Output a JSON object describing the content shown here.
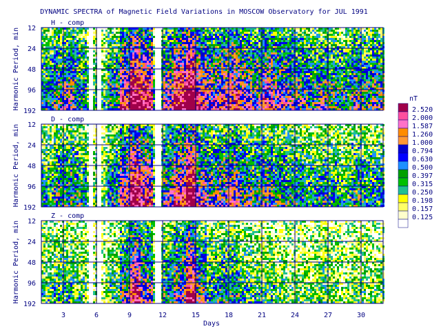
{
  "chart_data": {
    "type": "heatmap",
    "title": "DYNAMIC SPECTRA of Magnetic Field Variations in MOSCOW Observatory for JUL 1991",
    "xlabel": "Days",
    "ylabel": "Harmonic Period, min",
    "xlim": [
      1,
      32
    ],
    "x_ticks": [
      "3",
      "6",
      "9",
      "12",
      "15",
      "18",
      "21",
      "24",
      "27",
      "30"
    ],
    "y_ticks": [
      "12",
      "24",
      "48",
      "96",
      "192"
    ],
    "y_scale": "log2",
    "grid": true,
    "panels": [
      {
        "name": "H - comp",
        "intensity_by_day": [
          0.45,
          0.55,
          0.6,
          0.5,
          0.3,
          0.3,
          0.5,
          0.75,
          0.95,
          0.85,
          0.4,
          0.65,
          0.85,
          1.0,
          0.75,
          0.65,
          0.7,
          0.75,
          0.65,
          0.6,
          0.7,
          0.65,
          0.6,
          0.55,
          0.5,
          0.55,
          0.5,
          0.45,
          0.55,
          0.5,
          0.55
        ]
      },
      {
        "name": "D - comp",
        "intensity_by_day": [
          0.4,
          0.5,
          0.5,
          0.45,
          0.25,
          0.25,
          0.45,
          0.7,
          0.9,
          0.75,
          0.35,
          0.6,
          0.75,
          0.95,
          0.65,
          0.55,
          0.6,
          0.65,
          0.55,
          0.5,
          0.55,
          0.5,
          0.45,
          0.45,
          0.4,
          0.45,
          0.4,
          0.35,
          0.45,
          0.4,
          0.4
        ]
      },
      {
        "name": "Z - comp",
        "intensity_by_day": [
          0.3,
          0.35,
          0.35,
          0.3,
          0.2,
          0.2,
          0.3,
          0.55,
          0.8,
          0.6,
          0.3,
          0.45,
          0.6,
          0.85,
          0.55,
          0.4,
          0.45,
          0.45,
          0.35,
          0.3,
          0.3,
          0.3,
          0.25,
          0.25,
          0.25,
          0.3,
          0.25,
          0.2,
          0.25,
          0.25,
          0.25
        ]
      }
    ],
    "data_gaps_days": [
      [
        5.2,
        5.6
      ],
      [
        5.9,
        6.4
      ],
      [
        11.3,
        11.8
      ]
    ],
    "colorbar": {
      "unit": "nT",
      "labels": [
        "2.520",
        "2.000",
        "1.587",
        "1.260",
        "1.000",
        "0.794",
        "0.630",
        "0.500",
        "0.397",
        "0.315",
        "0.250",
        "0.198",
        "0.157",
        "0.125"
      ],
      "colors": [
        "#a0004a",
        "#ff4f9e",
        "#ff72c8",
        "#ff8c00",
        "#ff9933",
        "#0000cd",
        "#0000ff",
        "#1e90ff",
        "#00a000",
        "#00c000",
        "#20c090",
        "#ffff00",
        "#ffff66",
        "#ffffcc",
        "#ffffff"
      ]
    }
  }
}
